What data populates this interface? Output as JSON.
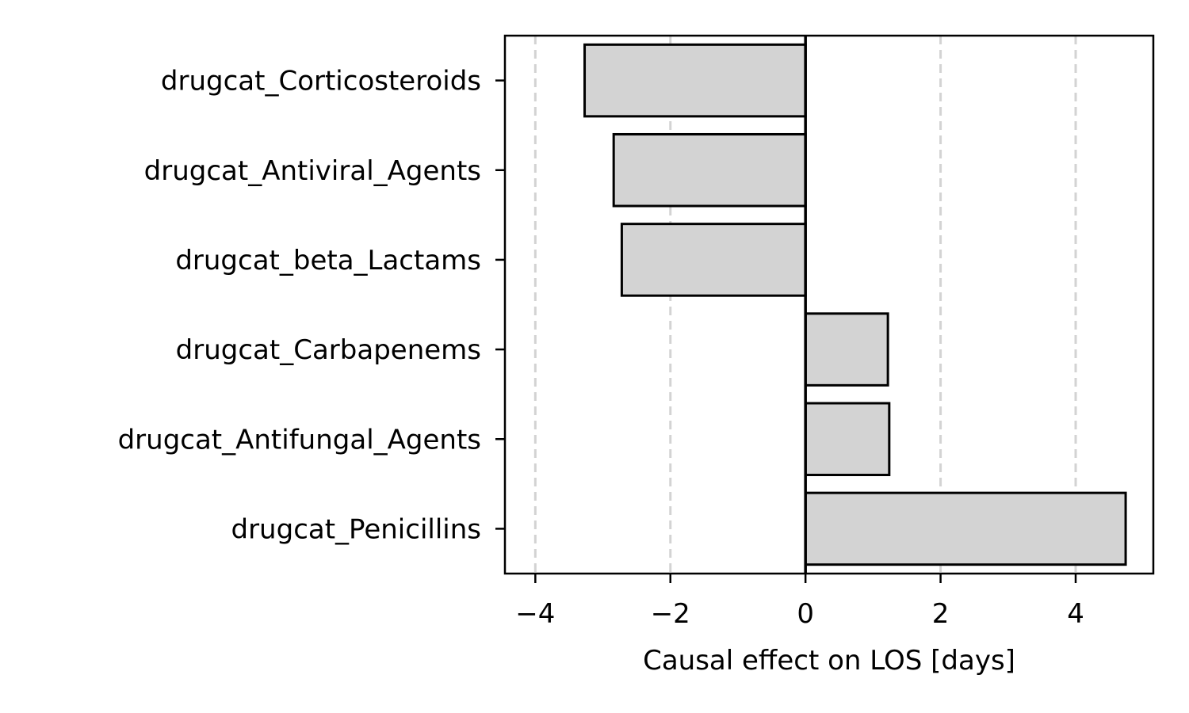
{
  "chart_data": {
    "type": "bar",
    "orientation": "horizontal",
    "categories": [
      "drugcat_Corticosteroids",
      "drugcat_Antiviral_Agents",
      "drugcat_beta_Lactams",
      "drugcat_Carbapenems",
      "drugcat_Antifungal_Agents",
      "drugcat_Penicillins"
    ],
    "values": [
      -3.27,
      -2.84,
      -2.72,
      1.22,
      1.24,
      4.74
    ],
    "xlabel": "Causal effect on LOS [days]",
    "xlim": [
      -4.45,
      5.15
    ],
    "xticks": [
      -4,
      -2,
      0,
      2,
      4
    ],
    "xtick_labels": [
      "−4",
      "−2",
      "0",
      "2",
      "4"
    ],
    "grid": "vertical dashed at x ticks",
    "bar_fill": "#d3d3d3",
    "bar_edge": "#000000",
    "grid_color": "#d3d3d3"
  }
}
